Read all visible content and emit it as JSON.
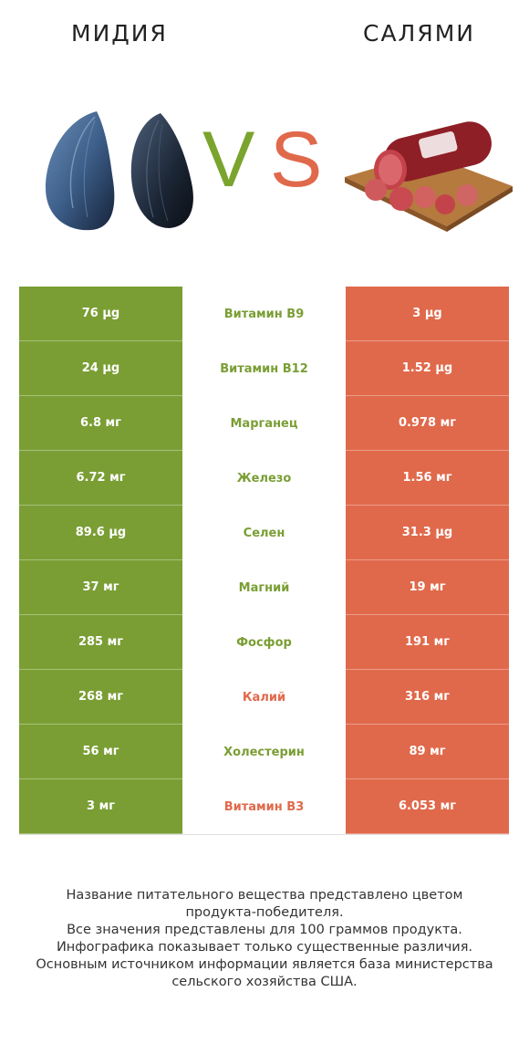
{
  "header": {
    "left_title": "МИДИЯ",
    "right_title": "САЛЯМИ",
    "vs_v": "V",
    "vs_s": "S",
    "left_image_icon": "mussel-icon",
    "right_image_icon": "salami-icon"
  },
  "colors": {
    "left": "#7a9e34",
    "right": "#e0694b",
    "vs_v": "#7aa42e",
    "vs_s": "#e0694b"
  },
  "rows": [
    {
      "left": "76 µg",
      "name": "Витамин B9",
      "right": "3 µg",
      "winner": "left"
    },
    {
      "left": "24 µg",
      "name": "Витамин B12",
      "right": "1.52 µg",
      "winner": "left"
    },
    {
      "left": "6.8 мг",
      "name": "Марганец",
      "right": "0.978 мг",
      "winner": "left"
    },
    {
      "left": "6.72 мг",
      "name": "Железо",
      "right": "1.56 мг",
      "winner": "left"
    },
    {
      "left": "89.6 µg",
      "name": "Селен",
      "right": "31.3 µg",
      "winner": "left"
    },
    {
      "left": "37 мг",
      "name": "Магний",
      "right": "19 мг",
      "winner": "left"
    },
    {
      "left": "285 мг",
      "name": "Фосфор",
      "right": "191 мг",
      "winner": "left"
    },
    {
      "left": "268 мг",
      "name": "Калий",
      "right": "316 мг",
      "winner": "right"
    },
    {
      "left": "56 мг",
      "name": "Холестерин",
      "right": "89 мг",
      "winner": "left"
    },
    {
      "left": "3 мг",
      "name": "Витамин B3",
      "right": "6.053 мг",
      "winner": "right"
    }
  ],
  "footer": {
    "lines": [
      "Название питательного вещества представлено цветом",
      "продукта-победителя.",
      "Все значения представлены для 100 граммов продукта.",
      "Инфографика показывает только существенные различия.",
      "Основным источником информации является база министерства",
      "сельского хозяйства США."
    ]
  }
}
